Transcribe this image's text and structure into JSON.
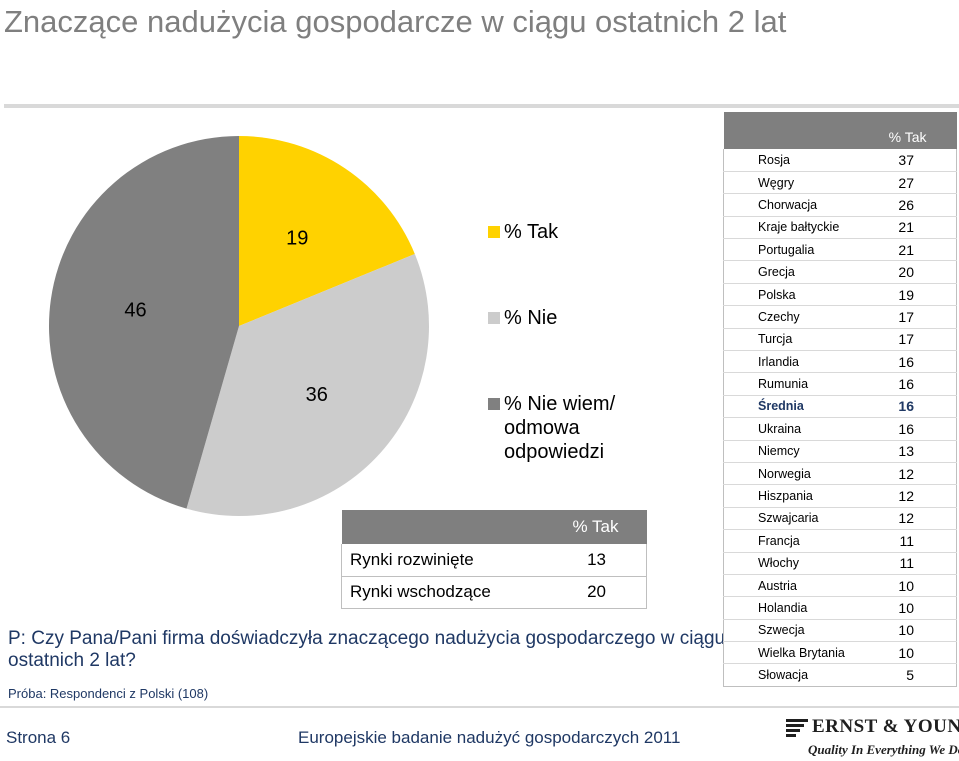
{
  "title": "Znaczące nadużycia gospodarcze w ciągu ostatnich 2 lat",
  "chart_data": [
    {
      "type": "pie",
      "slices": [
        {
          "name": "% Tak",
          "value": 19,
          "color": "#ffd200"
        },
        {
          "name": "% Nie",
          "value": 36,
          "color": "#cccccc"
        },
        {
          "name": "% Nie wiem/ odmowa odpowiedzi",
          "value": 46,
          "color": "#808080"
        }
      ],
      "legend_position": "right",
      "legend": [
        {
          "label": "% Tak",
          "color": "#ffd200"
        },
        {
          "label": "% Nie",
          "color": "#cccccc"
        },
        {
          "label": "% Nie wiem/ odmowa odpowiedzi",
          "color": "#808080"
        }
      ]
    },
    {
      "type": "table",
      "header": "% Tak",
      "rows": [
        {
          "label": "Rynki rozwinięte",
          "value": "13"
        },
        {
          "label": "Rynki wschodzące",
          "value": "20"
        }
      ]
    },
    {
      "type": "table",
      "header": "% Tak",
      "highlight": "Średnia",
      "rows": [
        {
          "label": "Rosja",
          "value": "37"
        },
        {
          "label": "Węgry",
          "value": "27"
        },
        {
          "label": "Chorwacja",
          "value": "26"
        },
        {
          "label": "Kraje bałtyckie",
          "value": "21"
        },
        {
          "label": "Portugalia",
          "value": "21"
        },
        {
          "label": "Grecja",
          "value": "20"
        },
        {
          "label": "Polska",
          "value": "19"
        },
        {
          "label": "Czechy",
          "value": "17"
        },
        {
          "label": "Turcja",
          "value": "17"
        },
        {
          "label": "Irlandia",
          "value": "16"
        },
        {
          "label": "Rumunia",
          "value": "16"
        },
        {
          "label": "Średnia",
          "value": "16"
        },
        {
          "label": "Ukraina",
          "value": "16"
        },
        {
          "label": "Niemcy",
          "value": "13"
        },
        {
          "label": "Norwegia",
          "value": "12"
        },
        {
          "label": "Hiszpania",
          "value": "12"
        },
        {
          "label": "Szwajcaria",
          "value": "12"
        },
        {
          "label": "Francja",
          "value": "11"
        },
        {
          "label": "Włochy",
          "value": "11"
        },
        {
          "label": "Austria",
          "value": "10"
        },
        {
          "label": "Holandia",
          "value": "10"
        },
        {
          "label": "Szwecja",
          "value": "10"
        },
        {
          "label": "Wielka Brytania",
          "value": "10"
        },
        {
          "label": "Słowacja",
          "value": "5"
        }
      ]
    }
  ],
  "question": "P: Czy Pana/Pani firma doświadczyła znaczącego nadużycia gospodarczego w ciągu ostatnich 2 lat?",
  "sample": "Próba: Respondenci z Polski (108)",
  "footer": {
    "page": "Strona 6",
    "text": "Europejskie badanie nadużyć gospodarczych 2011",
    "logo_name": "ERNST & YOUNG",
    "logo_tagline": "Quality In Everything We Do"
  },
  "colors": {
    "accent": "#ffd200",
    "header_gray": "#7f7f7f",
    "text_blue": "#1f3864"
  }
}
